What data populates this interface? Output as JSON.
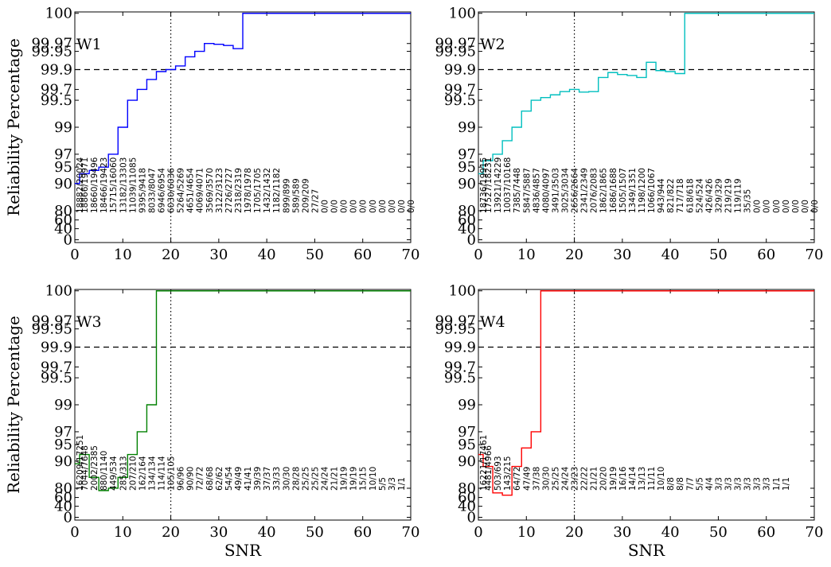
{
  "figure": {
    "ylabel": "Reliability Percentage",
    "xlabel": "SNR",
    "xlim": [
      0,
      70
    ],
    "xticks": [
      0,
      10,
      20,
      30,
      40,
      50,
      60,
      70
    ],
    "yticks": [
      0,
      40,
      60,
      80,
      90,
      95,
      97,
      99,
      99.5,
      99.7,
      99.9,
      99.95,
      99.97,
      100
    ],
    "threshold_y": 99.9,
    "threshold_style": "dashed",
    "marker_x": 20,
    "marker_style": "dotted"
  },
  "chart_data": [
    {
      "type": "line",
      "step": true,
      "label": "W1",
      "color": "#0000ff",
      "xlim": [
        0,
        70
      ],
      "x": [
        0,
        1,
        3,
        5,
        7,
        9,
        11,
        13,
        15,
        17,
        19,
        21,
        23,
        25,
        27,
        29,
        31,
        33,
        35,
        37,
        39,
        41,
        43,
        45,
        47,
        49,
        51,
        53,
        55,
        57,
        59,
        61,
        63,
        65,
        67,
        69,
        70
      ],
      "y": [
        90,
        93,
        94,
        95,
        97,
        99,
        99.5,
        99.7,
        99.8,
        99.88,
        99.9,
        99.91,
        99.935,
        99.95,
        99.97,
        99.968,
        99.965,
        99.957,
        100,
        100,
        100,
        100,
        100,
        100,
        100,
        100,
        100,
        100,
        100,
        100,
        100,
        100,
        100,
        100,
        100,
        100,
        100
      ],
      "counts": [
        "18882/20024",
        "18866/19971",
        "18660/19496",
        "18466/19423",
        "15715/16060",
        "13182/13303",
        "11039/11085",
        "9395/9418",
        "8033/8047",
        "6946/6954",
        "6030/6036",
        "5264/5269",
        "4651/4654",
        "4069/4071",
        "3569/3570",
        "3122/3123",
        "2726/2727",
        "2318/2319",
        "1978/1978",
        "1705/1705",
        "1432/1432",
        "1182/1182",
        "899/899",
        "589/589",
        "209/209",
        "27/27",
        "0/0",
        "0/0",
        "0/0",
        "0/0",
        "0/0",
        "0/0",
        "0/0",
        "0/0",
        "0/0",
        "0/0"
      ]
    },
    {
      "type": "line",
      "step": true,
      "label": "W2",
      "color": "#00bfbf",
      "xlim": [
        0,
        70
      ],
      "x": [
        0,
        1,
        3,
        5,
        7,
        9,
        11,
        13,
        15,
        17,
        19,
        21,
        23,
        25,
        27,
        29,
        31,
        33,
        35,
        37,
        39,
        41,
        43,
        45,
        47,
        49,
        51,
        53,
        55,
        57,
        59,
        61,
        63,
        65,
        67,
        69,
        70
      ],
      "y": [
        93,
        96,
        97,
        98,
        99,
        99.3,
        99.5,
        99.55,
        99.6,
        99.66,
        99.7,
        99.65,
        99.66,
        99.82,
        99.87,
        99.85,
        99.84,
        99.82,
        99.92,
        99.89,
        99.88,
        99.86,
        100,
        100,
        100,
        100,
        100,
        100,
        100,
        100,
        100,
        100,
        100,
        100,
        100,
        100,
        100
      ],
      "counts": [
        "18736/19915",
        "17527/18231",
        "13921/14229",
        "10037/10168",
        "7385/7448",
        "5847/5887",
        "4836/4857",
        "4080/4097",
        "3491/3503",
        "3025/3034",
        "2656/2664",
        "2341/2349",
        "2076/2083",
        "1862/1865",
        "1686/1688",
        "1505/1507",
        "1349/1351",
        "1198/1200",
        "1066/1067",
        "943/944",
        "821/822",
        "717/718",
        "618/618",
        "524/524",
        "426/426",
        "329/329",
        "219/219",
        "119/119",
        "35/35",
        "0/0",
        "0/0",
        "0/0",
        "0/0",
        "0/0",
        "0/0",
        "0/0"
      ]
    },
    {
      "type": "line",
      "step": true,
      "label": "W3",
      "color": "#008000",
      "xlim": [
        0,
        70
      ],
      "x": [
        0,
        1,
        3,
        5,
        7,
        9,
        11,
        13,
        15,
        17,
        19,
        21,
        23,
        25,
        27,
        29,
        31,
        33,
        35,
        37,
        39,
        41,
        43,
        45,
        47,
        49,
        51,
        53,
        55,
        57,
        59,
        61,
        63,
        65,
        67,
        69,
        70
      ],
      "y": [
        89,
        92,
        84,
        75,
        80,
        84,
        92,
        97,
        99,
        100,
        100,
        100,
        100,
        100,
        100,
        100,
        100,
        100,
        100,
        100,
        100,
        100,
        100,
        100,
        100,
        100,
        100,
        100,
        100,
        100,
        100,
        100,
        100,
        100,
        100,
        100,
        100
      ],
      "counts": [
        "16209/17251",
        "7044/7648",
        "2002/2385",
        "880/1140",
        "449/534",
        "285/313",
        "207/210",
        "162/164",
        "134/134",
        "114/114",
        "105/105",
        "96/96",
        "90/90",
        "72/72",
        "68/68",
        "62/62",
        "54/54",
        "49/49",
        "41/41",
        "39/39",
        "37/37",
        "33/33",
        "30/30",
        "28/28",
        "25/25",
        "25/25",
        "24/24",
        "21/21",
        "19/19",
        "19/19",
        "15/15",
        "10/10",
        "5/5",
        "3/3",
        "1/1",
        ""
      ]
    },
    {
      "type": "line",
      "step": true,
      "label": "W4",
      "color": "#ff0000",
      "xlim": [
        0,
        70
      ],
      "x": [
        0,
        1,
        3,
        5,
        7,
        9,
        11,
        13,
        15,
        17,
        19,
        21,
        23,
        25,
        27,
        29,
        31,
        33,
        35,
        37,
        39,
        41,
        43,
        45,
        47,
        49,
        51,
        53,
        55,
        57,
        59,
        61,
        63,
        65,
        67,
        69,
        70
      ],
      "y": [
        92,
        88,
        70,
        65,
        88,
        94,
        97,
        100,
        100,
        100,
        100,
        100,
        100,
        100,
        100,
        100,
        100,
        100,
        100,
        100,
        100,
        100,
        100,
        100,
        100,
        100,
        100,
        100,
        100,
        100,
        100,
        100,
        100,
        100,
        100,
        100,
        100
      ],
      "counts": [
        "16221/17461",
        "4481/4966",
        "503/693",
        "143/215",
        "64/72",
        "47/49",
        "37/38",
        "30/30",
        "25/25",
        "24/24",
        "23/23",
        "22/22",
        "21/21",
        "20/20",
        "19/19",
        "16/16",
        "14/14",
        "13/13",
        "11/11",
        "10/10",
        "8/8",
        "8/8",
        "7/7",
        "5/5",
        "4/4",
        "3/3",
        "3/3",
        "3/3",
        "3/3",
        "3/3",
        "3/3",
        "1/1",
        "1/1",
        "",
        "",
        ""
      ]
    }
  ]
}
